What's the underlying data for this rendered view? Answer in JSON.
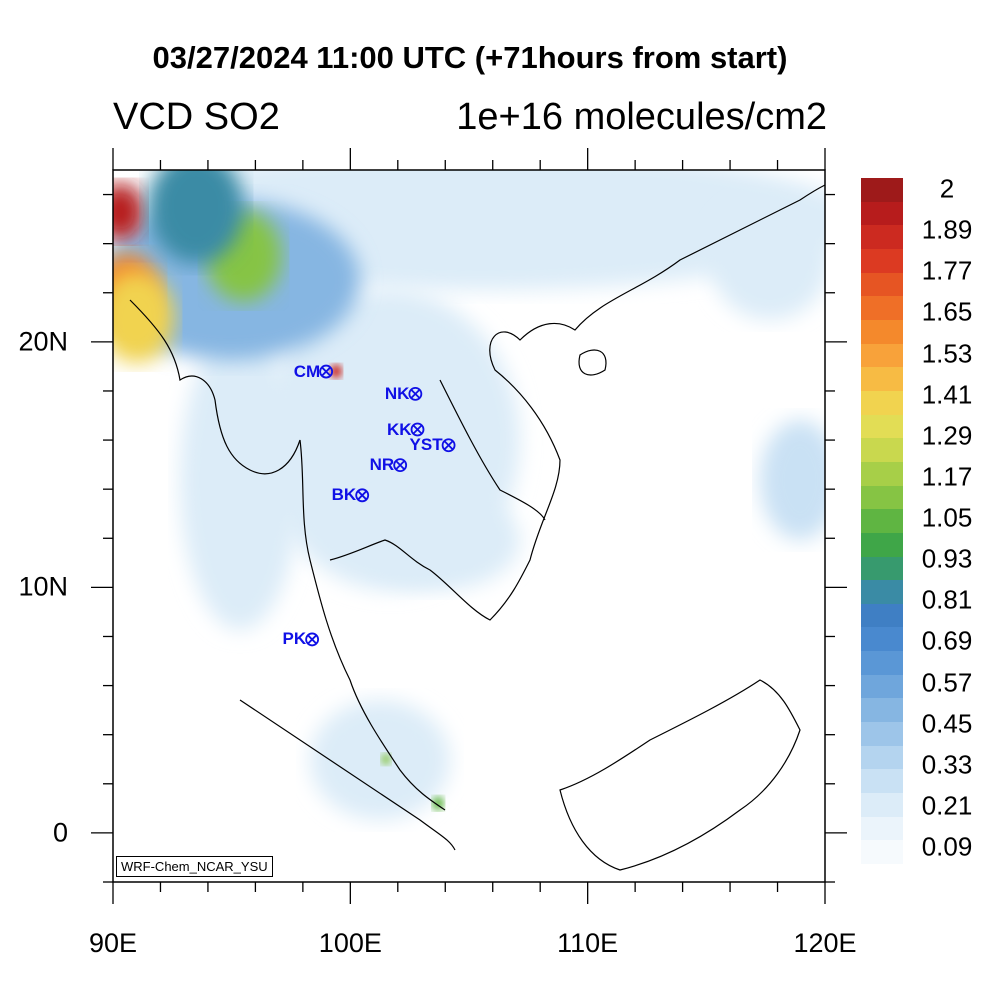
{
  "title": "03/27/2024 11:00 UTC (+71hours from start)",
  "variable": "VCD SO2",
  "units": "1e+16 molecules/cm2",
  "model_tag": "WRF-Chem_NCAR_YSU",
  "map": {
    "lon_range": [
      90,
      120
    ],
    "lat_range": [
      -2,
      27
    ],
    "x_ticks": [
      {
        "lon": 90,
        "label": "90E"
      },
      {
        "lon": 100,
        "label": "100E"
      },
      {
        "lon": 110,
        "label": "110E"
      },
      {
        "lon": 120,
        "label": "120E"
      }
    ],
    "y_ticks": [
      {
        "lat": 0,
        "label": "0"
      },
      {
        "lat": 10,
        "label": "10N"
      },
      {
        "lat": 20,
        "label": "20N"
      }
    ],
    "stations": [
      {
        "name": "CM",
        "lon": 98.98,
        "lat": 18.79
      },
      {
        "name": "NK",
        "lon": 102.74,
        "lat": 17.88
      },
      {
        "name": "KK",
        "lon": 102.83,
        "lat": 16.43
      },
      {
        "name": "YST",
        "lon": 104.14,
        "lat": 15.79
      },
      {
        "name": "NR",
        "lon": 102.1,
        "lat": 14.98
      },
      {
        "name": "BK",
        "lon": 100.5,
        "lat": 13.75
      },
      {
        "name": "PK",
        "lon": 98.39,
        "lat": 7.88
      }
    ]
  },
  "colorbar": {
    "labels": [
      "2",
      "1.89",
      "1.77",
      "1.65",
      "1.53",
      "1.41",
      "1.29",
      "1.17",
      "1.05",
      "0.93",
      "0.81",
      "0.69",
      "0.57",
      "0.45",
      "0.33",
      "0.21",
      "0.09"
    ],
    "colors": [
      "#9e1a1a",
      "#b71c1c",
      "#cc2a20",
      "#dc3a22",
      "#e65523",
      "#ef6f27",
      "#f4892c",
      "#f8a23a",
      "#f7bb44",
      "#f1d34f",
      "#e2dd55",
      "#c9d84e",
      "#a7cf48",
      "#86c444",
      "#5fb542",
      "#3fa648",
      "#379a6e",
      "#3a8ba5",
      "#3f7fc4",
      "#4989cf",
      "#5a97d6",
      "#6fa6dc",
      "#86b6e2",
      "#9dc5e9",
      "#b4d4ef",
      "#c9e1f4",
      "#dcecf8",
      "#ebf4fb",
      "#f6fafd"
    ]
  },
  "plumes": [
    {
      "name": "bangladesh-hotspot",
      "lon": 90.3,
      "lat": 25.3,
      "r": 1.0,
      "color": "#b71c1c"
    },
    {
      "name": "bangladesh-orange",
      "lon": 90.6,
      "lat": 22.0,
      "r": 1.4,
      "color": "#f4892c"
    },
    {
      "name": "bangladesh-yellow",
      "lon": 91.0,
      "lat": 21.0,
      "r": 1.6,
      "color": "#f1d34f"
    },
    {
      "name": "myanmar-green",
      "lon": 95.5,
      "lat": 23.5,
      "r": 1.6,
      "color": "#86c444"
    },
    {
      "name": "myanmar-teal",
      "lon": 93.5,
      "lat": 25.5,
      "r": 2.0,
      "color": "#3a8ba5"
    },
    {
      "name": "cm-hotspot",
      "lon": 99.4,
      "lat": 18.8,
      "r": 0.25,
      "color": "#cc2a20"
    },
    {
      "name": "singapore-green",
      "lon": 103.7,
      "lat": 1.2,
      "r": 0.25,
      "color": "#5fb542"
    },
    {
      "name": "malacca-green",
      "lon": 101.5,
      "lat": 3.0,
      "r": 0.2,
      "color": "#86c444"
    }
  ]
}
